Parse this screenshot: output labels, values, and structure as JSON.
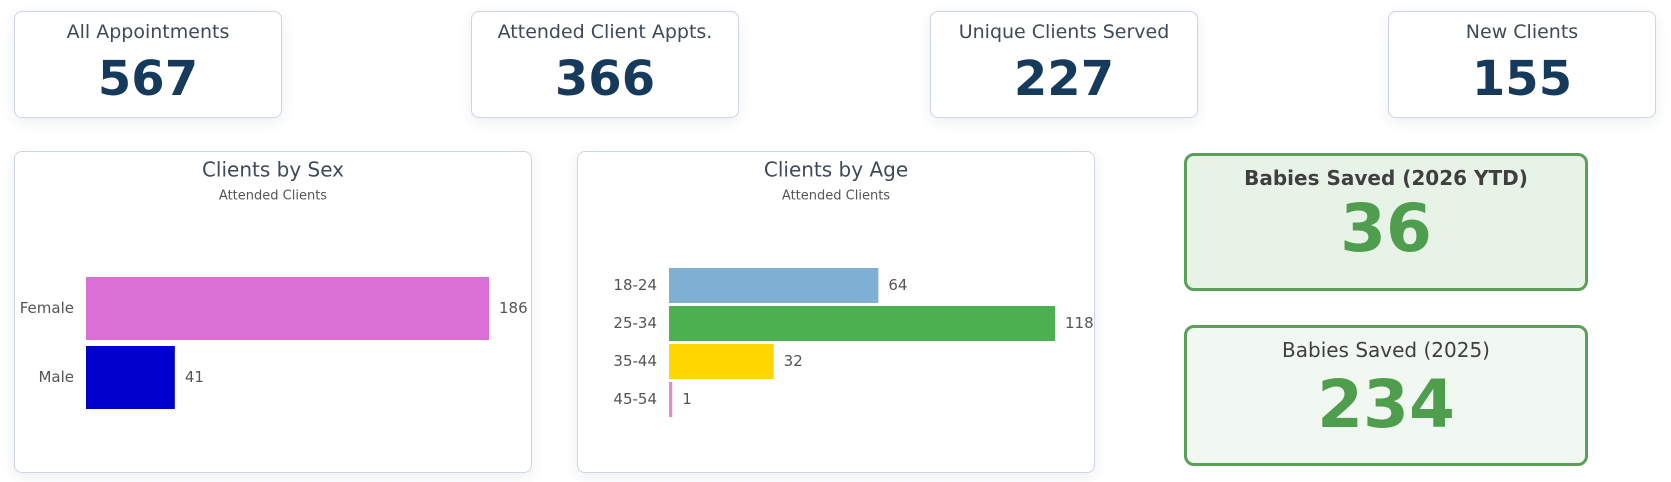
{
  "kpis": [
    {
      "label": "All Appointments",
      "value": 567
    },
    {
      "label": "Attended Client Appts.",
      "value": 366
    },
    {
      "label": "Unique Clients Served",
      "value": 227
    },
    {
      "label": "New Clients",
      "value": 155
    }
  ],
  "chart_data": [
    {
      "type": "hbar",
      "title": "Clients by Sex",
      "subtitle": "Attended Clients",
      "categories": [
        "Female",
        "Male"
      ],
      "values": [
        186,
        41
      ],
      "colors": [
        "#da70d6",
        "#0000cd"
      ]
    },
    {
      "type": "hbar",
      "title": "Clients by Age",
      "subtitle": "Attended Clients",
      "categories": [
        "18-24",
        "25-34",
        "35-44",
        "45-54"
      ],
      "values": [
        64,
        118,
        32,
        1
      ],
      "colors": [
        "#7fb0d3",
        "#4caf50",
        "#ffd700",
        "#e68ac7"
      ]
    }
  ],
  "highlights": [
    {
      "label": "Babies Saved (2026 YTD)",
      "value": 36
    },
    {
      "label": "Babies Saved (2025)",
      "value": 234
    }
  ]
}
